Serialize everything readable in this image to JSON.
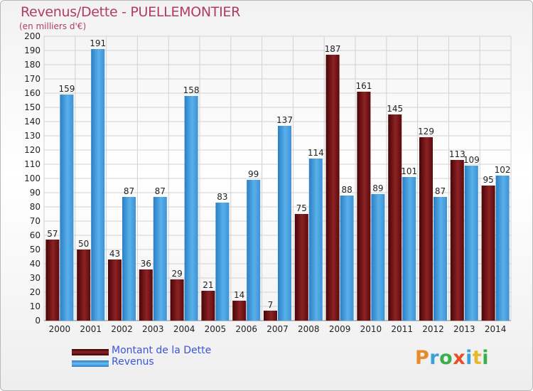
{
  "header": {
    "title": "Revenus/Dette - PUELLEMONTIER",
    "subtitle": "(en milliers d'€)"
  },
  "logo": {
    "text": "Proxiti",
    "letters": [
      "P",
      "r",
      "o",
      "x",
      "i",
      "t",
      "i"
    ],
    "colors": [
      "#e88a2a",
      "#3b9fd8",
      "#3bb04a",
      "#e8502a",
      "#3b9fd8",
      "#e8b82a",
      "#3bb04a"
    ]
  },
  "legend": [
    {
      "label": "Montant de la Dette",
      "color": "#7a1416"
    },
    {
      "label": "Revenus",
      "color": "#3d9ae2"
    }
  ],
  "chart_data": {
    "type": "bar",
    "categories": [
      "2000",
      "2001",
      "2002",
      "2003",
      "2004",
      "2005",
      "2006",
      "2007",
      "2008",
      "2009",
      "2010",
      "2011",
      "2012",
      "2013",
      "2014"
    ],
    "series": [
      {
        "name": "Montant de la Dette",
        "color": "#7a1416",
        "values": [
          57,
          50,
          43,
          36,
          29,
          21,
          14,
          7,
          75,
          187,
          161,
          145,
          129,
          113,
          95
        ]
      },
      {
        "name": "Revenus",
        "color": "#3d9ae2",
        "values": [
          159,
          191,
          87,
          87,
          158,
          83,
          99,
          137,
          114,
          88,
          89,
          101,
          87,
          109,
          102
        ]
      }
    ],
    "title": "Revenus/Dette - PUELLEMONTIER",
    "subtitle": "(en milliers d'€)",
    "ylim": [
      0,
      200
    ],
    "yticks": [
      0,
      10,
      20,
      30,
      40,
      50,
      60,
      70,
      80,
      90,
      100,
      110,
      120,
      130,
      140,
      150,
      160,
      170,
      180,
      190,
      200
    ],
    "grid": true,
    "legend_position": "bottom-left"
  }
}
